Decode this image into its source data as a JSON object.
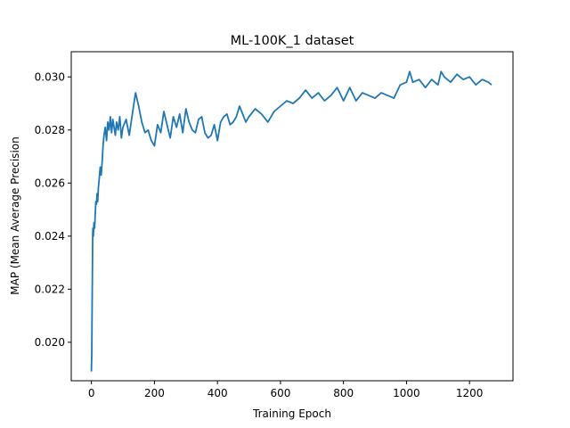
{
  "chart_data": {
    "type": "line",
    "title": "ML-100K_1 dataset",
    "xlabel": "Training Epoch",
    "ylabel": "MAP (Mean Average Precision",
    "xlim": [
      -64,
      1338
    ],
    "ylim": [
      0.01855,
      0.03095
    ],
    "xticks": [
      0,
      200,
      400,
      600,
      800,
      1000,
      1200
    ],
    "xtick_labels": [
      "0",
      "200",
      "400",
      "600",
      "800",
      "1000",
      "1200"
    ],
    "yticks": [
      0.02,
      0.022,
      0.024,
      0.026,
      0.028,
      0.03
    ],
    "ytick_labels": [
      "0.020",
      "0.022",
      "0.024",
      "0.026",
      "0.028",
      "0.030"
    ],
    "grid": false,
    "series": [
      {
        "color": "#1f77b4",
        "x": [
          0,
          1,
          2,
          3,
          4,
          5,
          6,
          8,
          10,
          12,
          14,
          16,
          18,
          20,
          22,
          25,
          28,
          31,
          34,
          37,
          40,
          44,
          48,
          52,
          56,
          60,
          64,
          68,
          72,
          76,
          80,
          85,
          90,
          95,
          100,
          110,
          120,
          130,
          140,
          150,
          160,
          170,
          180,
          190,
          200,
          210,
          220,
          230,
          240,
          250,
          260,
          270,
          280,
          290,
          300,
          310,
          320,
          330,
          340,
          350,
          360,
          370,
          380,
          390,
          400,
          410,
          420,
          430,
          440,
          450,
          460,
          470,
          480,
          490,
          500,
          520,
          540,
          560,
          580,
          600,
          620,
          640,
          660,
          680,
          700,
          720,
          740,
          760,
          780,
          800,
          820,
          840,
          860,
          880,
          900,
          920,
          940,
          960,
          980,
          1000,
          1010,
          1020,
          1040,
          1060,
          1080,
          1100,
          1110,
          1120,
          1140,
          1160,
          1180,
          1200,
          1220,
          1240,
          1260,
          1270
        ],
        "y": [
          0.0189,
          0.0195,
          0.0207,
          0.0225,
          0.0241,
          0.0243,
          0.024,
          0.0245,
          0.0243,
          0.0248,
          0.0253,
          0.0252,
          0.0256,
          0.0253,
          0.0258,
          0.0262,
          0.0266,
          0.0263,
          0.0268,
          0.0274,
          0.0278,
          0.0281,
          0.0276,
          0.0283,
          0.028,
          0.0285,
          0.0279,
          0.0284,
          0.0281,
          0.0278,
          0.0283,
          0.028,
          0.0285,
          0.0277,
          0.0281,
          0.0284,
          0.0278,
          0.0286,
          0.0294,
          0.0289,
          0.0283,
          0.0279,
          0.028,
          0.0276,
          0.0274,
          0.0282,
          0.0279,
          0.0287,
          0.0282,
          0.0277,
          0.0285,
          0.0281,
          0.0286,
          0.0279,
          0.0288,
          0.0283,
          0.028,
          0.0279,
          0.0284,
          0.0285,
          0.0279,
          0.0277,
          0.0278,
          0.0282,
          0.0276,
          0.0283,
          0.0285,
          0.0286,
          0.0282,
          0.0283,
          0.0285,
          0.0289,
          0.0286,
          0.0283,
          0.0285,
          0.0288,
          0.0286,
          0.0283,
          0.0287,
          0.0289,
          0.0291,
          0.029,
          0.0292,
          0.0295,
          0.0292,
          0.0294,
          0.0291,
          0.0293,
          0.0296,
          0.0291,
          0.0296,
          0.0291,
          0.0294,
          0.0293,
          0.0292,
          0.0294,
          0.0293,
          0.0292,
          0.0297,
          0.0298,
          0.0302,
          0.0298,
          0.0299,
          0.0296,
          0.0299,
          0.0297,
          0.0302,
          0.03,
          0.0298,
          0.0301,
          0.0299,
          0.03,
          0.0297,
          0.0299,
          0.0298,
          0.0297
        ]
      }
    ]
  }
}
